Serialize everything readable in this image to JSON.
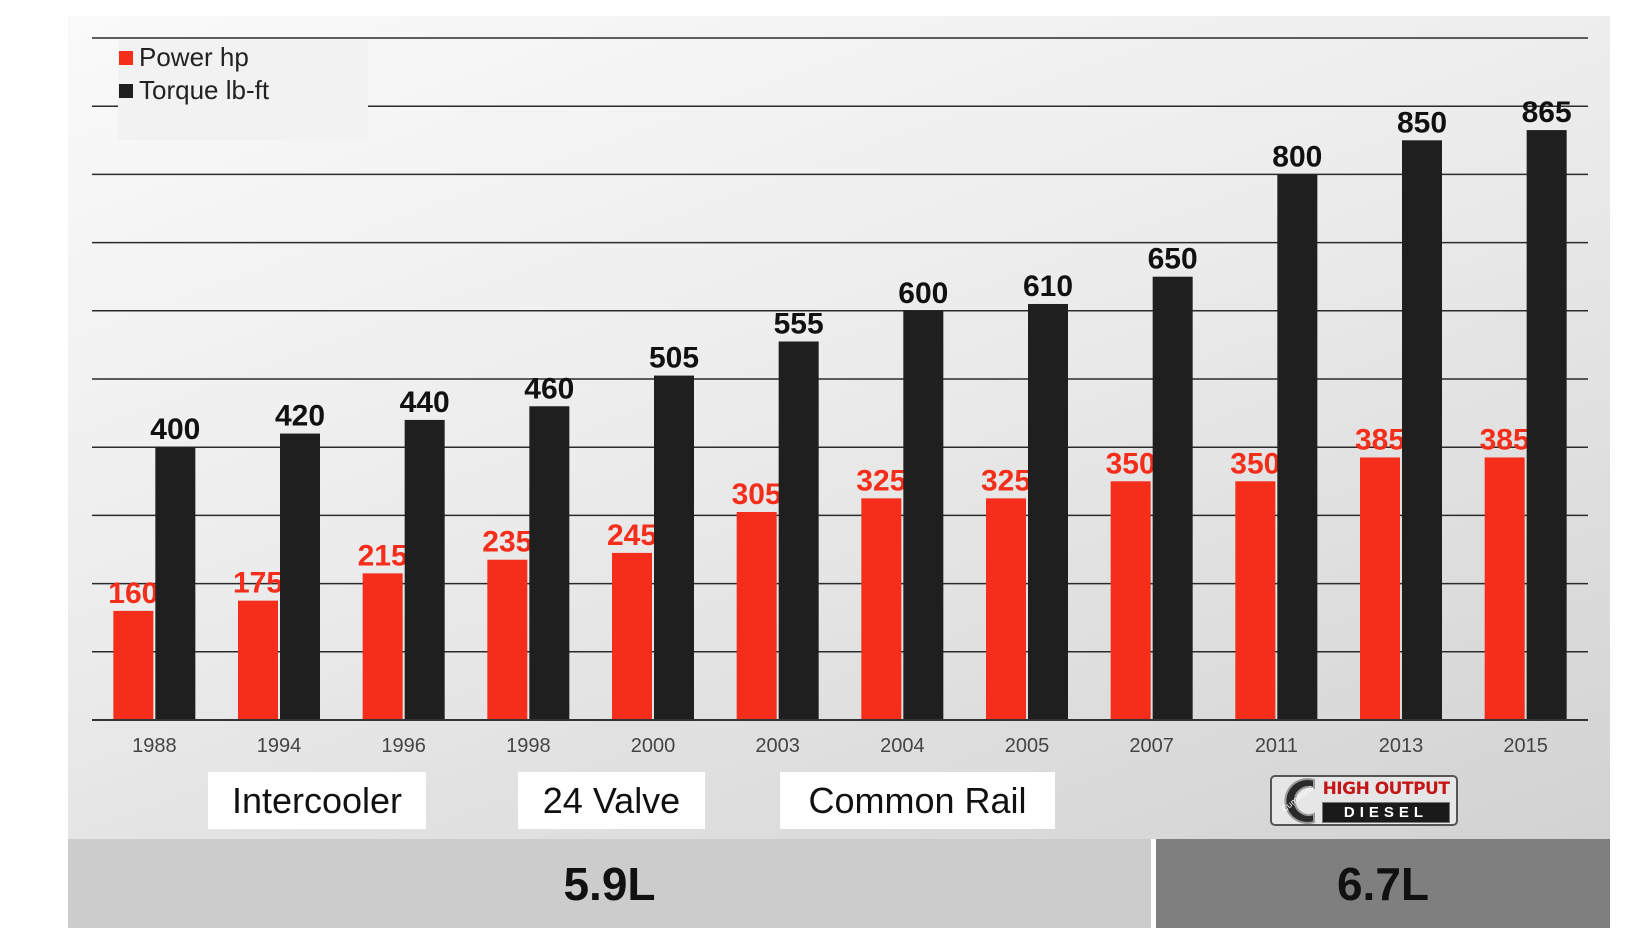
{
  "chart_data": {
    "type": "bar",
    "categories": [
      "1988",
      "1994",
      "1996",
      "1998",
      "2000",
      "2003",
      "2004",
      "2005",
      "2007",
      "2011",
      "2013",
      "2015"
    ],
    "series": [
      {
        "name": "Power  hp",
        "color": "#f52d1b",
        "values": [
          160,
          175,
          215,
          235,
          245,
          305,
          325,
          325,
          350,
          350,
          385,
          385
        ]
      },
      {
        "name": "Torque lb-ft",
        "color": "#1f1f1f",
        "values": [
          400,
          420,
          440,
          460,
          505,
          555,
          600,
          610,
          650,
          800,
          850,
          865
        ]
      }
    ],
    "ylim": [
      0,
      1000
    ],
    "grid": true,
    "legend_position": "top-left",
    "data_labels": true
  },
  "annotations": {
    "tags": [
      "Intercooler",
      "24 Valve",
      "Common Rail"
    ],
    "bands": [
      {
        "label": "5.9L",
        "color": "#cccccc"
      },
      {
        "label": "6.7L",
        "color": "#7f7f7f"
      }
    ],
    "logo": {
      "brand": "Cummins",
      "line1": "HIGH OUTPUT",
      "line2": "DIESEL",
      "icon": "cummins-high-output-diesel-logo"
    }
  }
}
